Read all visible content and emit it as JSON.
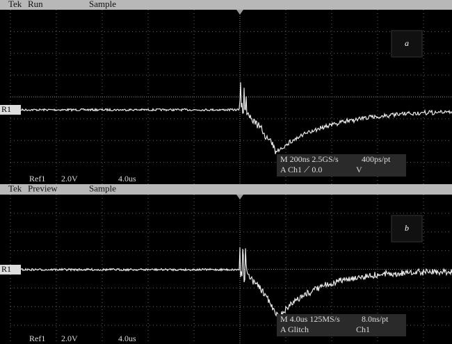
{
  "panels": [
    {
      "header": {
        "brand": "Tek",
        "mode": "Run",
        "acquisition": "Sample"
      },
      "label": "a",
      "ref_marker": "R1",
      "footer": {
        "ref": "Ref1",
        "volts": "2.0V",
        "time": "4.0us"
      },
      "info": {
        "line1": "M 200ns 2.5GS/s",
        "line1_right": "400ps/pt",
        "line2": "A Ch1 ⟋ 0.0",
        "line2_right": "V"
      }
    },
    {
      "header": {
        "brand": "Tek",
        "mode": "Preview",
        "acquisition": "Sample"
      },
      "label": "b",
      "ref_marker": "R1",
      "footer": {
        "ref": "Ref1",
        "volts": "2.0V",
        "time": "4.0us"
      },
      "info": {
        "line1": "M 4.0us 125MS/s",
        "line1_right": "8.0ns/pt",
        "line2": "A Glitch",
        "line2_right": "Ch1"
      }
    }
  ]
}
